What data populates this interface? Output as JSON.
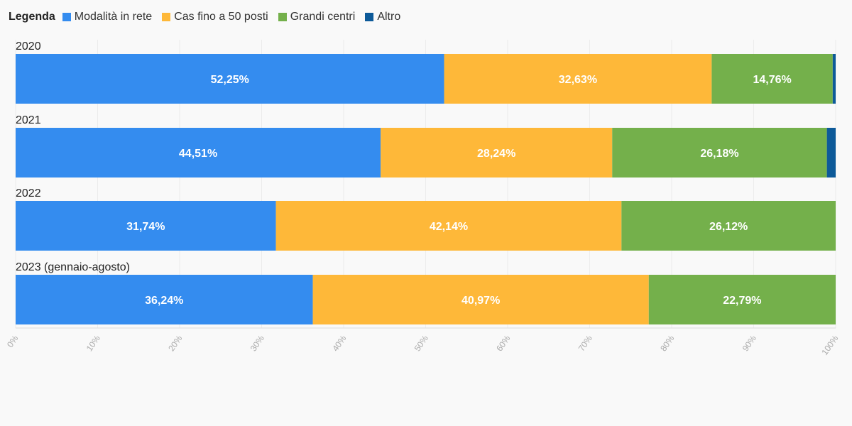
{
  "legend": {
    "title": "Legenda"
  },
  "chart_data": {
    "type": "bar",
    "orientation": "horizontal",
    "stacked": true,
    "categories": [
      "2020",
      "2021",
      "2022",
      "2023 (gennaio-agosto)"
    ],
    "series": [
      {
        "name": "Modalità in rete",
        "color": "#348cef",
        "values": [
          52.25,
          44.51,
          31.74,
          36.24
        ],
        "labels": [
          "52,25%",
          "44,51%",
          "31,74%",
          "36,24%"
        ]
      },
      {
        "name": "Cas fino a 50 posti",
        "color": "#feb839",
        "values": [
          32.63,
          28.24,
          42.14,
          40.97
        ],
        "labels": [
          "32,63%",
          "28,24%",
          "42,14%",
          "40,97%"
        ]
      },
      {
        "name": "Grandi centri",
        "color": "#74b04b",
        "values": [
          14.76,
          26.18,
          26.12,
          22.79
        ],
        "labels": [
          "14,76%",
          "26,18%",
          "26,12%",
          "22,79%"
        ]
      },
      {
        "name": "Altro",
        "color": "#0d5a99",
        "values": [
          0.36,
          1.07,
          0.0,
          0.0
        ],
        "labels": [
          "",
          "",
          "",
          ""
        ]
      }
    ],
    "xlim": [
      0,
      100
    ],
    "x_ticks": [
      "0%",
      "10%",
      "20%",
      "30%",
      "40%",
      "50%",
      "60%",
      "70%",
      "80%",
      "90%",
      "100%"
    ],
    "grid": true,
    "legend_position": "top-left"
  }
}
